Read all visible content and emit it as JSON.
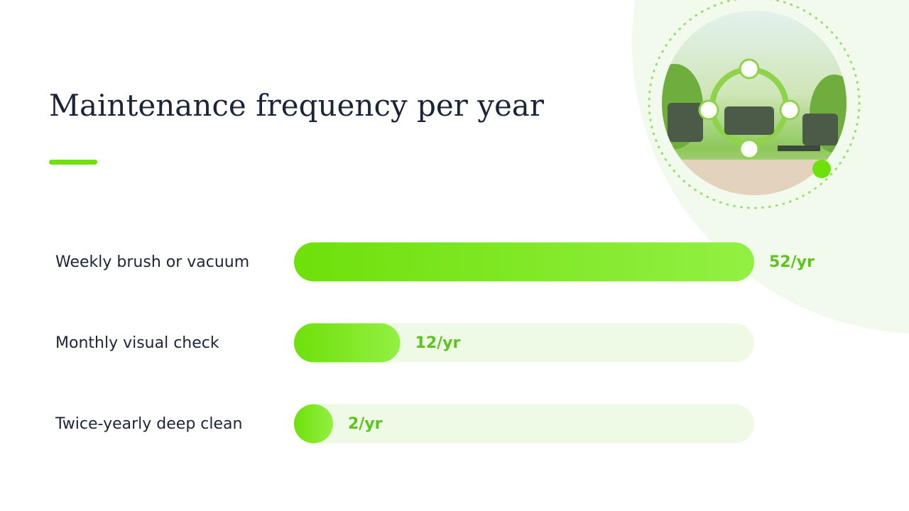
{
  "chart_data": {
    "type": "bar",
    "orientation": "horizontal",
    "title": "Maintenance frequency per year",
    "categories": [
      "Weekly brush or vacuum",
      "Monthly visual check",
      "Twice-yearly deep clean"
    ],
    "values": [
      52,
      12,
      2
    ],
    "value_labels": [
      "52/yr",
      "12/yr",
      "2/yr"
    ],
    "color": "#74e612",
    "xlim": [
      0,
      52
    ]
  }
}
